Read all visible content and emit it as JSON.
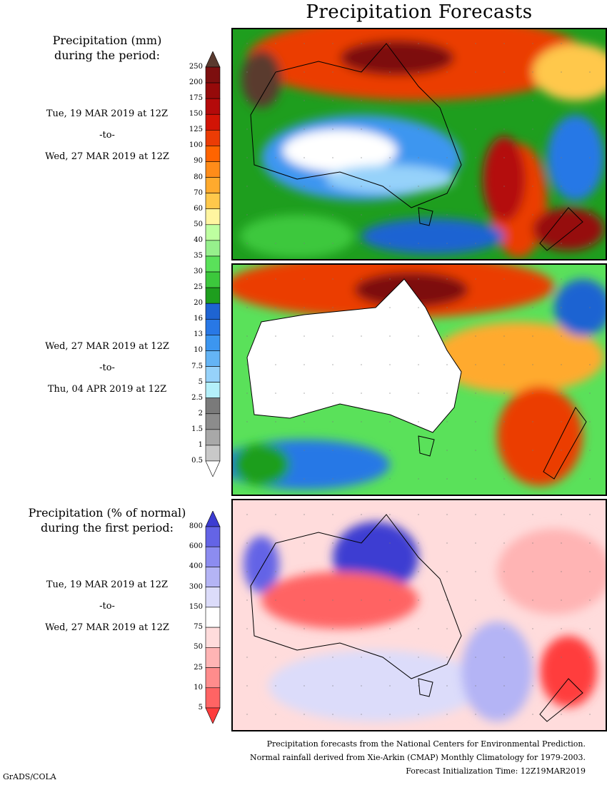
{
  "title": "Precipitation Forecasts",
  "panel_headings": {
    "amount_line1": "Precipitation (mm)",
    "amount_line2": "during the period:",
    "pct_line1": "Precipitation (% of normal)",
    "pct_line2": "during the first period:"
  },
  "periods": [
    {
      "start": "Tue, 19 MAR 2019 at 12Z",
      "sep": "-to-",
      "end": "Wed, 27 MAR 2019 at 12Z"
    },
    {
      "start": "Wed, 27 MAR 2019 at 12Z",
      "sep": "-to-",
      "end": "Thu, 04 APR 2019 at 12Z"
    },
    {
      "start": "Tue, 19 MAR 2019 at 12Z",
      "sep": "-to-",
      "end": "Wed, 27 MAR 2019 at 12Z"
    }
  ],
  "precip_scale": {
    "labels": [
      "250",
      "200",
      "175",
      "150",
      "125",
      "100",
      "90",
      "80",
      "70",
      "60",
      "50",
      "40",
      "35",
      "30",
      "25",
      "20",
      "16",
      "13",
      "10",
      "7.5",
      "5",
      "2.5",
      "2",
      "1.5",
      "1",
      "0.5"
    ],
    "colors": [
      "#5a3a2f",
      "#7d0f0f",
      "#960a0a",
      "#b40a0a",
      "#d21405",
      "#eb3c05",
      "#ff6400",
      "#ff8c19",
      "#ffaa2d",
      "#ffc84b",
      "#fff5a0",
      "#beffa0",
      "#96f08c",
      "#5ae15a",
      "#3cc83c",
      "#1e9e1e",
      "#1e64d2",
      "#2878e6",
      "#3c96f0",
      "#64b4f5",
      "#96d2fa",
      "#b4f0fa",
      "#7a7a7a",
      "#8c8c8c",
      "#a8a8a8",
      "#c8c8c8",
      "#ffffff"
    ]
  },
  "pct_scale": {
    "labels": [
      "800",
      "600",
      "400",
      "300",
      "150",
      "75",
      "50",
      "25",
      "10",
      "5"
    ],
    "colors": [
      "#3c3cd2",
      "#6464e6",
      "#8c8cf0",
      "#b4b4f5",
      "#dcdcfa",
      "#ffffff",
      "#ffdcdc",
      "#ffb4b4",
      "#ff8c8c",
      "#ff6464",
      "#ff3c3c"
    ]
  },
  "footer": {
    "line1": "Precipitation forecasts from the National Centers for Environmental Prediction.",
    "line2": "Normal rainfall derived from Xie-Arkin (CMAP) Monthly Climatology for 1979-2003.",
    "line3": "Forecast Initialization Time: 12Z19MAR2019"
  },
  "credit": "GrADS/COLA"
}
